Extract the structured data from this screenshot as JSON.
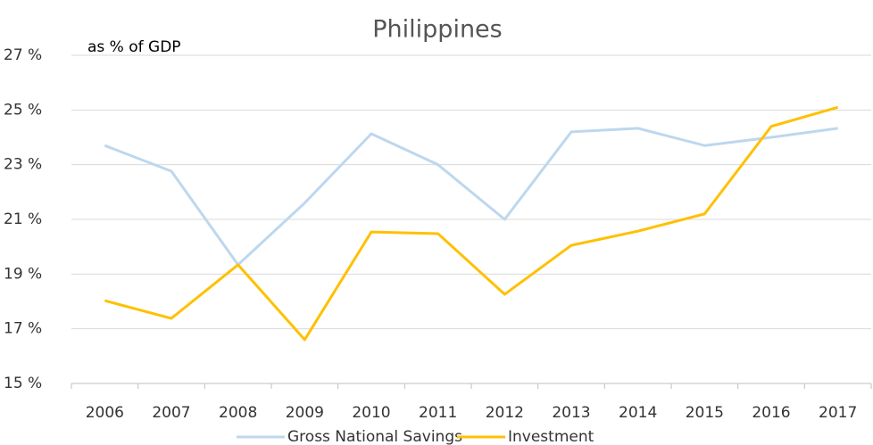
{
  "chart_data": {
    "type": "line",
    "title": "Philippines",
    "annotation": "as % of GDP",
    "categories": [
      "2006",
      "2007",
      "2008",
      "2009",
      "2010",
      "2011",
      "2012",
      "2013",
      "2014",
      "2015",
      "2016",
      "2017"
    ],
    "series": [
      {
        "name": "Gross National Savings",
        "color": "#bdd7ee",
        "values": [
          23.7,
          22.76,
          19.34,
          21.6,
          24.13,
          23.0,
          21.0,
          24.2,
          24.33,
          23.7,
          24.0,
          24.33
        ]
      },
      {
        "name": "Investment",
        "color": "#ffc000",
        "values": [
          18.03,
          17.38,
          19.34,
          16.6,
          20.54,
          20.48,
          18.26,
          20.05,
          20.57,
          21.2,
          24.4,
          25.1
        ]
      }
    ],
    "ylim": [
      15,
      27
    ],
    "yticks": [
      {
        "value": 15,
        "label": "15 %"
      },
      {
        "value": 17,
        "label": "17 %"
      },
      {
        "value": 19,
        "label": "19 %"
      },
      {
        "value": 21,
        "label": "21 %"
      },
      {
        "value": 23,
        "label": "23 %"
      },
      {
        "value": 25,
        "label": "25 %"
      },
      {
        "value": 27,
        "label": "27 %"
      }
    ],
    "grid": true,
    "legend": "bottom"
  }
}
